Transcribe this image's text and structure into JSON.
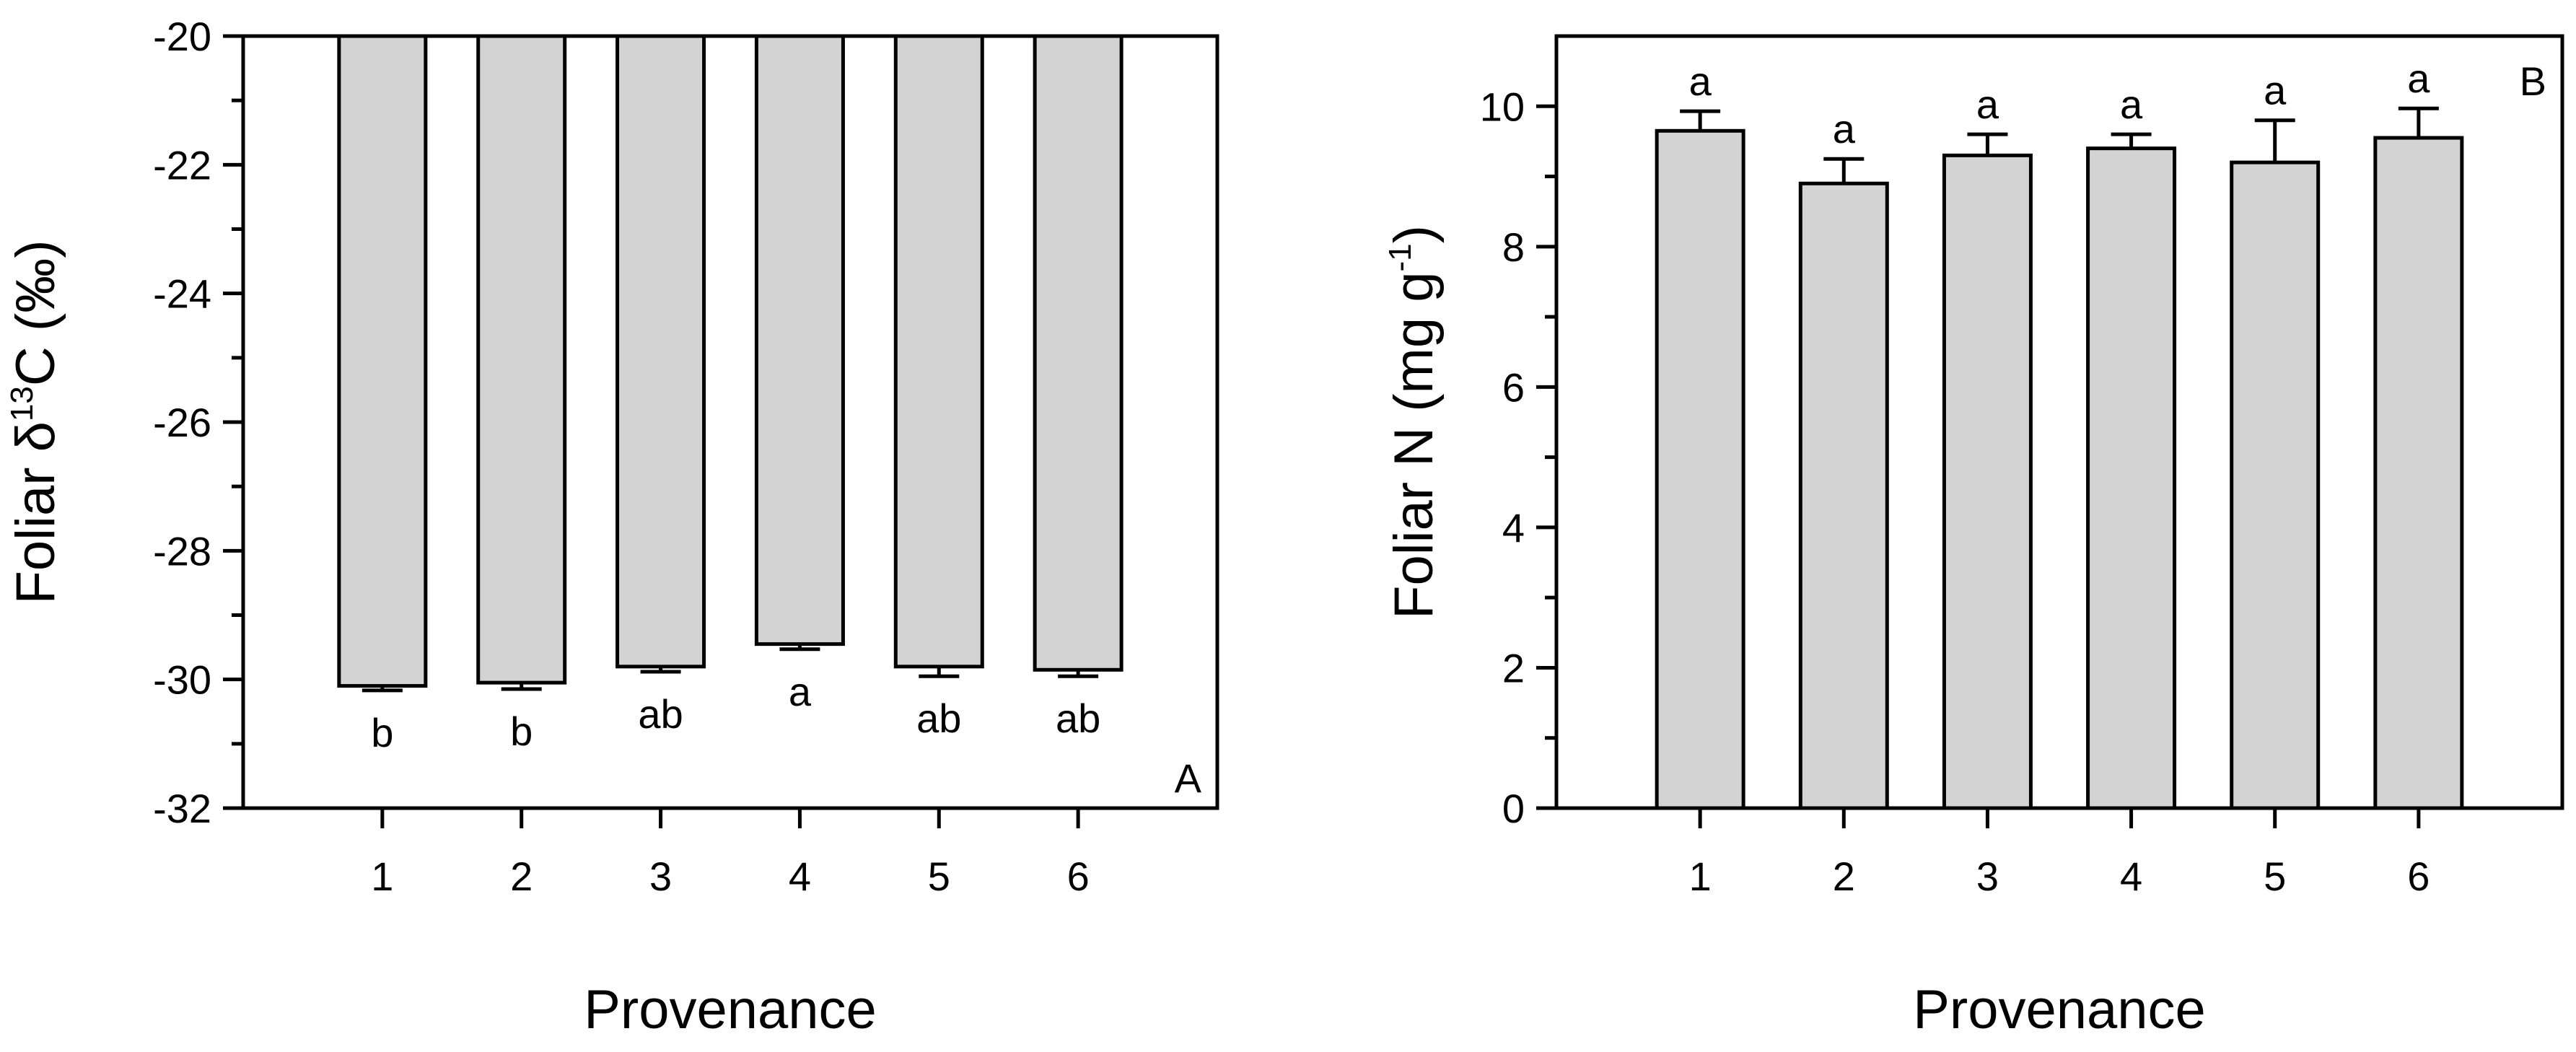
{
  "chart_data": [
    {
      "type": "bar",
      "panel": "A",
      "categories": [
        "1",
        "2",
        "3",
        "4",
        "5",
        "6"
      ],
      "values": [
        -30.1,
        -30.05,
        -29.8,
        -29.45,
        -29.8,
        -29.85
      ],
      "errors": [
        0.07,
        0.1,
        0.08,
        0.08,
        0.15,
        0.1
      ],
      "significance": [
        "b",
        "b",
        "ab",
        "a",
        "ab",
        "ab"
      ],
      "xlabel": "Provenance",
      "ylabel": {
        "prefix": "Foliar δ",
        "superscript": "13",
        "suffix": "C (‰)"
      },
      "ylim": [
        -32,
        -20
      ],
      "bar_base": -20,
      "yticks": [
        -20,
        -22,
        -24,
        -26,
        -28,
        -30,
        -32
      ],
      "ytick_labels": [
        "-20",
        "-22",
        "-24",
        "-26",
        "-28",
        "-30",
        "-32"
      ],
      "minor_yticks": [
        -21,
        -23,
        -25,
        -27,
        -29,
        -31
      ],
      "xtick_labels": [
        "1",
        "2",
        "3",
        "4",
        "5",
        "6"
      ],
      "grid": false,
      "bar_color": "#d3d3d3"
    },
    {
      "type": "bar",
      "panel": "B",
      "categories": [
        "1",
        "2",
        "3",
        "4",
        "5",
        "6"
      ],
      "values": [
        9.65,
        8.9,
        9.3,
        9.4,
        9.2,
        9.55
      ],
      "errors": [
        0.28,
        0.35,
        0.3,
        0.2,
        0.6,
        0.42
      ],
      "significance": [
        "a",
        "a",
        "a",
        "a",
        "a",
        "a"
      ],
      "xlabel": "Provenance",
      "ylabel": {
        "prefix": "Foliar N (mg g",
        "superscript": "-1",
        "suffix": ")"
      },
      "ylim": [
        0,
        11
      ],
      "bar_base": 0,
      "yticks": [
        0,
        2,
        4,
        6,
        8,
        10
      ],
      "ytick_labels": [
        "0",
        "2",
        "4",
        "6",
        "8",
        "10"
      ],
      "minor_yticks": [
        1,
        3,
        5,
        7,
        9
      ],
      "xtick_labels": [
        "1",
        "2",
        "3",
        "4",
        "5",
        "6"
      ],
      "grid": false,
      "bar_color": "#d3d3d3"
    }
  ]
}
